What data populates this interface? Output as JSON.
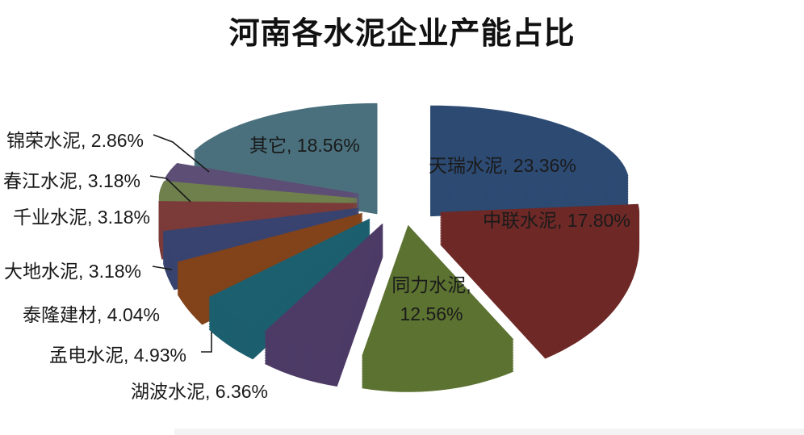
{
  "title": "河南各水泥企业产能占比",
  "text_color": "#1a1a1a",
  "chart_data": {
    "type": "pie",
    "style": "3d-exploded",
    "title": "河南各水泥企业产能占比",
    "unit": "%",
    "start_angle_deg": 0,
    "direction": "clockwise",
    "legend": "none",
    "slices": [
      {
        "id": "tianrui",
        "label": "天瑞水泥",
        "value": 23.36,
        "display": "天瑞水泥, 23.36%",
        "color": "#4677B4",
        "side_color": "#2C4A72"
      },
      {
        "id": "zhonglian",
        "label": "中联水泥",
        "value": 17.8,
        "display": "中联水泥, 17.80%",
        "color": "#B04340",
        "side_color": "#6E2927"
      },
      {
        "id": "tongli",
        "label": "同力水泥",
        "value": 12.56,
        "display": "同力水泥,\n12.56%",
        "color": "#8FAC50",
        "side_color": "#5C7231"
      },
      {
        "id": "hubo",
        "label": "湖波水泥",
        "value": 6.36,
        "display": "湖波水泥, 6.36%",
        "color": "#7C60A0",
        "side_color": "#4D3B66"
      },
      {
        "id": "mengdian",
        "label": "孟电水泥",
        "value": 4.93,
        "display": "孟电水泥, 4.93%",
        "color": "#2E96AC",
        "side_color": "#1C5F6E"
      },
      {
        "id": "tailong",
        "label": "泰隆建材",
        "value": 4.04,
        "display": "泰隆建材, 4.04%",
        "color": "#DD752C",
        "side_color": "#82431A"
      },
      {
        "id": "dadi",
        "label": "大地水泥",
        "value": 3.18,
        "display": "大地水泥, 3.18%",
        "color": "#8295CB",
        "side_color": "#38436F"
      },
      {
        "id": "qianye",
        "label": "千业水泥",
        "value": 3.18,
        "display": "千业水泥, 3.18%",
        "color": "#C98886",
        "side_color": "#7B3B39"
      },
      {
        "id": "chunjiang",
        "label": "春江水泥",
        "value": 3.18,
        "display": "春江水泥, 3.18%",
        "color": "#B0C57E",
        "side_color": "#6F804C"
      },
      {
        "id": "jinrong",
        "label": "锦荣水泥",
        "value": 2.86,
        "display": "锦荣水泥, 2.86%",
        "color": "#9C88BE",
        "side_color": "#5D4E76"
      },
      {
        "id": "qita",
        "label": "其它",
        "value": 18.56,
        "display": "其它, 18.56%",
        "color": "#7EB6C9",
        "side_color": "#4A707D"
      }
    ]
  }
}
